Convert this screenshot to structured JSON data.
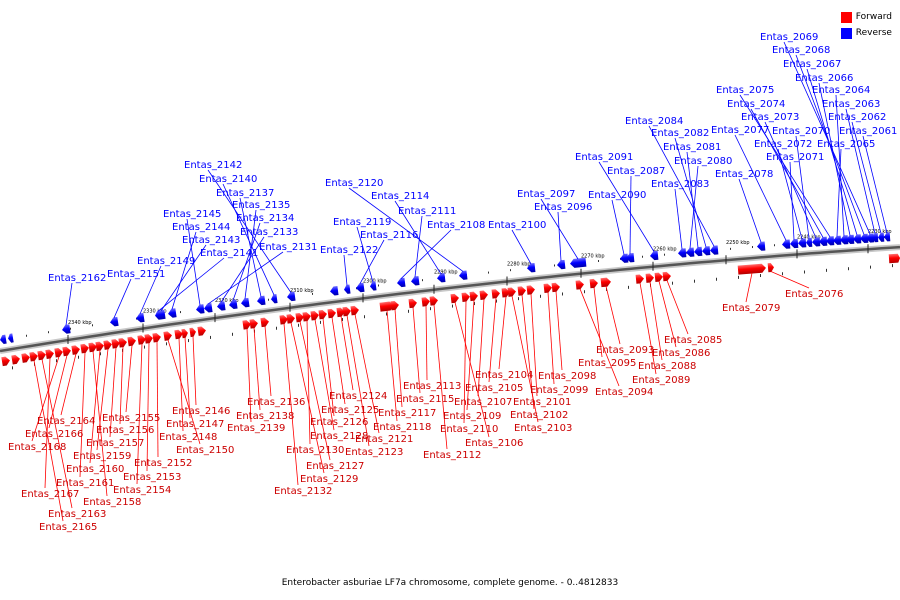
{
  "legend": {
    "forward": "Forward",
    "reverse": "Reverse",
    "forward_color": "#ff0000",
    "reverse_color": "#0000ff"
  },
  "caption": "Enterobacter asburiae LF7a chromosome, complete genome. - 0..4812833",
  "ticks": [
    "2340 kbp",
    "2330 kbp",
    "2320 kbp",
    "2310 kbp",
    "2300 kbp",
    "2290 kbp",
    "2280 kbp",
    "2270 kbp",
    "2260 kbp",
    "2250 kbp",
    "2240 kbp",
    "2230 kbp"
  ],
  "reverse_genes": [
    "Entas_2069",
    "Entas_2068",
    "Entas_2067",
    "Entas_2066",
    "Entas_2064",
    "Entas_2063",
    "Entas_2062",
    "Entas_2061",
    "Entas_2065",
    "Entas_2075",
    "Entas_2074",
    "Entas_2073",
    "Entas_2070",
    "Entas_2072",
    "Entas_2071",
    "Entas_2077",
    "Entas_2078",
    "Entas_2084",
    "Entas_2082",
    "Entas_2081",
    "Entas_2080",
    "Entas_2083",
    "Entas_2091",
    "Entas_2087",
    "Entas_2090",
    "Entas_2097",
    "Entas_2096",
    "Entas_2100",
    "Entas_2120",
    "Entas_2114",
    "Entas_2111",
    "Entas_2108",
    "Entas_2119",
    "Entas_2116",
    "Entas_2122",
    "Entas_2142",
    "Entas_2140",
    "Entas_2137",
    "Entas_2135",
    "Entas_2134",
    "Entas_2133",
    "Entas_2131",
    "Entas_2145",
    "Entas_2144",
    "Entas_2143",
    "Entas_2141",
    "Entas_2149",
    "Entas_2151",
    "Entas_2162"
  ],
  "forward_genes": [
    "Entas_2079",
    "Entas_2076",
    "Entas_2085",
    "Entas_2086",
    "Entas_2088",
    "Entas_2089",
    "Entas_2093",
    "Entas_2095",
    "Entas_2094",
    "Entas_2098",
    "Entas_2099",
    "Entas_2101",
    "Entas_2102",
    "Entas_2103",
    "Entas_2104",
    "Entas_2105",
    "Entas_2107",
    "Entas_2109",
    "Entas_2110",
    "Entas_2106",
    "Entas_2112",
    "Entas_2113",
    "Entas_2115",
    "Entas_2117",
    "Entas_2118",
    "Entas_2121",
    "Entas_2123",
    "Entas_2124",
    "Entas_2125",
    "Entas_2126",
    "Entas_2128",
    "Entas_2130",
    "Entas_2127",
    "Entas_2129",
    "Entas_2132",
    "Entas_2136",
    "Entas_2138",
    "Entas_2139",
    "Entas_2146",
    "Entas_2147",
    "Entas_2148",
    "Entas_2150",
    "Entas_2152",
    "Entas_2153",
    "Entas_2154",
    "Entas_2155",
    "Entas_2156",
    "Entas_2157",
    "Entas_2159",
    "Entas_2160",
    "Entas_2158",
    "Entas_2161",
    "Entas_2164",
    "Entas_2166",
    "Entas_2168",
    "Entas_2167",
    "Entas_2163",
    "Entas_2165"
  ]
}
